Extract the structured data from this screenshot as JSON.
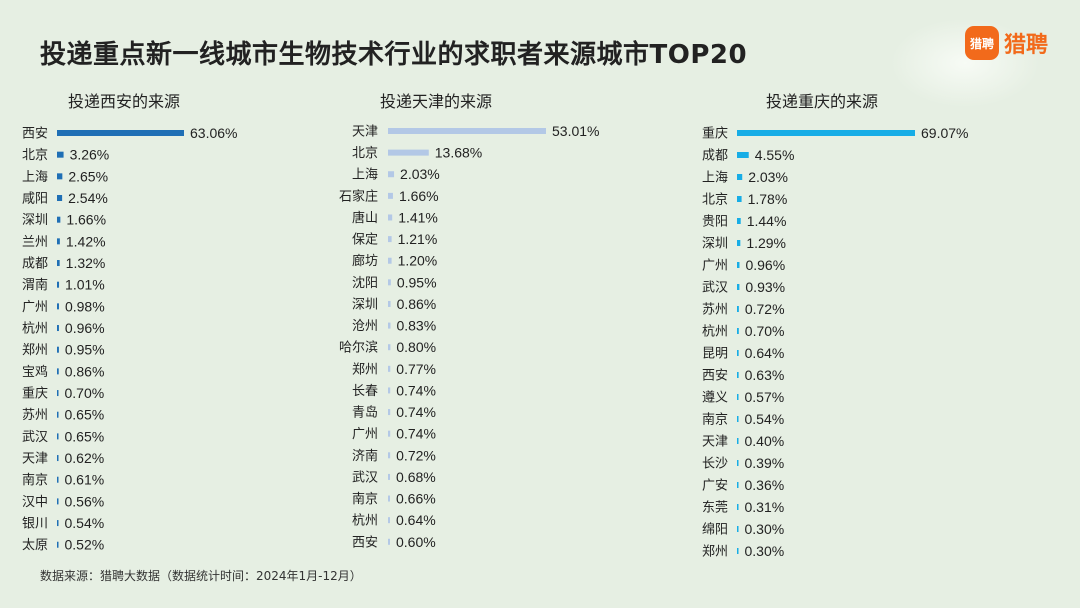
{
  "header": {
    "title": "投递重点新一线城市生物技术行业的求职者来源城市TOP20",
    "logo_text": "猎聘",
    "logo_badge": "猎聘"
  },
  "footnote": "数据来源：猎聘大数据（数据统计时间：2024年1月-12月）",
  "chart_data": [
    {
      "type": "bar",
      "orientation": "horizontal",
      "title": "投递西安的来源",
      "color": "#1f6fb5",
      "unit": "%",
      "categories": [
        "西安",
        "北京",
        "上海",
        "咸阳",
        "深圳",
        "兰州",
        "成都",
        "渭南",
        "广州",
        "杭州",
        "郑州",
        "宝鸡",
        "重庆",
        "苏州",
        "武汉",
        "天津",
        "南京",
        "汉中",
        "银川",
        "太原"
      ],
      "values": [
        63.06,
        3.26,
        2.65,
        2.54,
        1.66,
        1.42,
        1.32,
        1.01,
        0.98,
        0.96,
        0.95,
        0.86,
        0.7,
        0.65,
        0.65,
        0.62,
        0.61,
        0.56,
        0.54,
        0.52
      ],
      "labels": [
        "63.06%",
        "3.26%",
        "2.65%",
        "2.54%",
        "1.66%",
        "1.42%",
        "1.32%",
        "1.01%",
        "0.98%",
        "0.96%",
        "0.95%",
        "0.86%",
        "0.70%",
        "0.65%",
        "0.65%",
        "0.62%",
        "0.61%",
        "0.56%",
        "0.54%",
        "0.52%"
      ]
    },
    {
      "type": "bar",
      "orientation": "horizontal",
      "title": "投递天津的来源",
      "color": "#b3c8e6",
      "unit": "%",
      "categories": [
        "天津",
        "北京",
        "上海",
        "石家庄",
        "唐山",
        "保定",
        "廊坊",
        "沈阳",
        "深圳",
        "沧州",
        "哈尔滨",
        "郑州",
        "长春",
        "青岛",
        "广州",
        "济南",
        "武汉",
        "南京",
        "杭州",
        "西安"
      ],
      "values": [
        53.01,
        13.68,
        2.03,
        1.66,
        1.41,
        1.21,
        1.2,
        0.95,
        0.86,
        0.83,
        0.8,
        0.77,
        0.74,
        0.74,
        0.74,
        0.72,
        0.68,
        0.66,
        0.64,
        0.6
      ],
      "labels": [
        "53.01%",
        "13.68%",
        "2.03%",
        "1.66%",
        "1.41%",
        "1.21%",
        "1.20%",
        "0.95%",
        "0.86%",
        "0.83%",
        "0.80%",
        "0.77%",
        "0.74%",
        "0.74%",
        "0.74%",
        "0.72%",
        "0.68%",
        "0.66%",
        "0.64%",
        "0.60%"
      ]
    },
    {
      "type": "bar",
      "orientation": "horizontal",
      "title": "投递重庆的来源",
      "color": "#17ade6",
      "unit": "%",
      "categories": [
        "重庆",
        "成都",
        "上海",
        "北京",
        "贵阳",
        "深圳",
        "广州",
        "武汉",
        "苏州",
        "杭州",
        "昆明",
        "西安",
        "遵义",
        "南京",
        "天津",
        "长沙",
        "广安",
        "东莞",
        "绵阳",
        "郑州"
      ],
      "values": [
        69.07,
        4.55,
        2.03,
        1.78,
        1.44,
        1.29,
        0.96,
        0.93,
        0.72,
        0.7,
        0.64,
        0.63,
        0.57,
        0.54,
        0.4,
        0.39,
        0.36,
        0.31,
        0.3,
        0.3
      ],
      "labels": [
        "69.07%",
        "4.55%",
        "2.03%",
        "1.78%",
        "1.44%",
        "1.29%",
        "0.96%",
        "0.93%",
        "0.72%",
        "0.70%",
        "0.64%",
        "0.63%",
        "0.57%",
        "0.54%",
        "0.40%",
        "0.39%",
        "0.36%",
        "0.31%",
        "0.30%",
        "0.30%"
      ]
    }
  ]
}
